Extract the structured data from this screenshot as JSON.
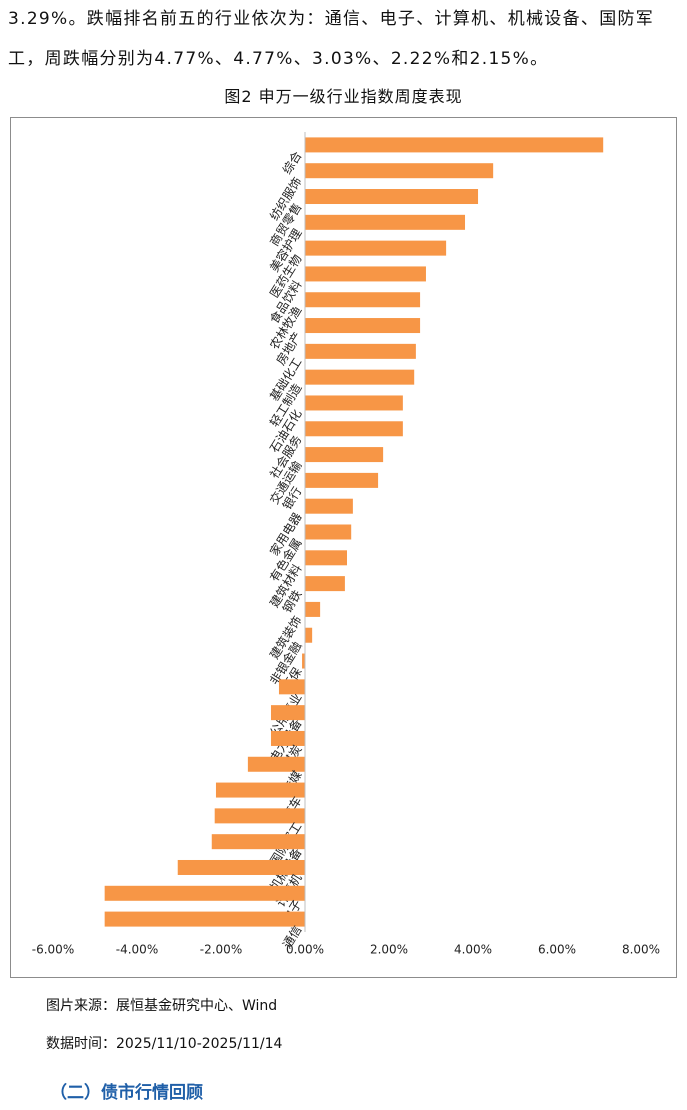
{
  "paragraph": {
    "lines": [
      "3.29%。跌幅排名前五的行业依次为：通信、电子、计算机、机械设备、国防军",
      "工，周跌幅分别为4.77%、4.77%、3.03%、2.22%和2.15%。"
    ]
  },
  "figure_caption": "图2 申万一级行业指数周度表现",
  "chart_data": {
    "type": "hbar",
    "color": "#f79646",
    "categories": [
      "综合",
      "纺织服饰",
      "商贸零售",
      "美容护理",
      "医药生物",
      "食品饮料",
      "农林牧渔",
      "房地产",
      "基础化工",
      "轻工制造",
      "石油石化",
      "社会服务",
      "交通运输",
      "银行",
      "家用电器",
      "有色金属",
      "建筑材料",
      "钢铁",
      "建筑装饰",
      "非银金融",
      "环保",
      "公用事业",
      "电力设备",
      "煤炭",
      "传媒",
      "汽车",
      "国防军工",
      "机械设备",
      "计算机",
      "电子",
      "通信"
    ],
    "values": [
      7.1,
      4.48,
      4.12,
      3.81,
      3.36,
      2.88,
      2.74,
      2.74,
      2.64,
      2.6,
      2.33,
      2.33,
      1.86,
      1.74,
      1.14,
      1.1,
      1.0,
      0.95,
      0.36,
      0.17,
      -0.07,
      -0.62,
      -0.81,
      -0.81,
      -1.36,
      -2.12,
      -2.15,
      -2.22,
      -3.03,
      -4.77,
      -4.77
    ],
    "xlim": [
      -6,
      8
    ],
    "xticks": [
      {
        "value": -6,
        "label": "-6.00%"
      },
      {
        "value": -4,
        "label": "-4.00%"
      },
      {
        "value": -2,
        "label": "-2.00%"
      },
      {
        "value": 0,
        "label": "0.00%"
      },
      {
        "value": 2,
        "label": "2.00%"
      },
      {
        "value": 4,
        "label": "4.00%"
      },
      {
        "value": 6,
        "label": "6.00%"
      },
      {
        "value": 8,
        "label": "8.00%"
      }
    ]
  },
  "source": "图片来源：展恒基金研究中心、Wind",
  "data_time": "数据时间：2025/11/10-2025/11/14",
  "section_heading": "（二）债市行情回顾"
}
